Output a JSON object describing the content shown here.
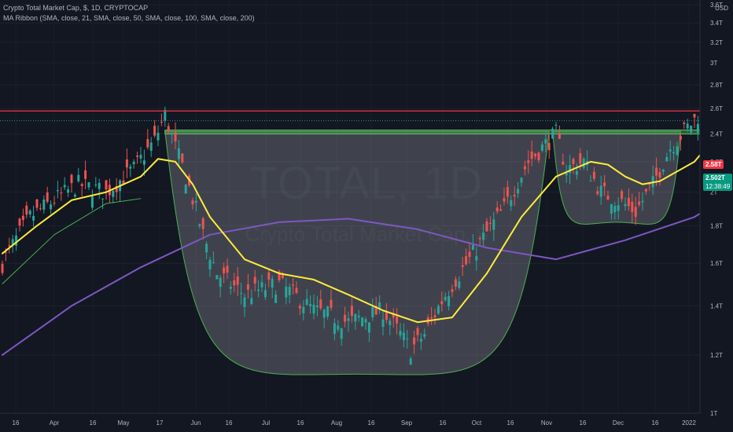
{
  "header": {
    "symbol_line": "Crypto Total Market Cap, $, 1D, CRYPTOCAP",
    "indicator_line": "MA Ribbon (SMA, close, 21, SMA, close, 50, SMA, close, 100, SMA, close, 200)",
    "currency": "USD"
  },
  "watermark": {
    "ticker": "TOTAL, 1D",
    "name": "Crypto Total Market Cap, $"
  },
  "price_tags": {
    "resistance": "2.58T",
    "last_price": "2.502T",
    "countdown": "12:38:49"
  },
  "colors": {
    "background": "#131722",
    "up_candle": "#26a69a",
    "down_candle": "#ef5350",
    "ma_yellow": "#ffeb3b",
    "ma_purple": "#7e57c2",
    "ma_green": "#4caf50",
    "resistance_line": "#f23645",
    "neckline_zone": "#4caf50"
  },
  "chart_data": {
    "type": "candlestick",
    "x_ticks": [
      "16",
      "Apr",
      "16",
      "May",
      "17",
      "Jun",
      "16",
      "Jul",
      "16",
      "Aug",
      "16",
      "Sep",
      "16",
      "Oct",
      "16",
      "Nov",
      "16",
      "Dec",
      "16",
      "2022"
    ],
    "y_ticks": [
      "1T",
      "1.2T",
      "1.4T",
      "1.6T",
      "1.8T",
      "2T",
      "2.2T",
      "2.4T",
      "2.6T",
      "2.8T",
      "3T",
      "3.2T",
      "3.4T",
      "3.6T"
    ],
    "ylim": [
      1.0,
      3.6
    ],
    "y_scale": "log",
    "ma_yellow": {
      "x_day": [
        0,
        10,
        20,
        30,
        40,
        45,
        50,
        55,
        60,
        70,
        80,
        90,
        100,
        110,
        120,
        130,
        140,
        150,
        160,
        165,
        170,
        175,
        180,
        185,
        190,
        200,
        205
      ],
      "y": [
        1.65,
        1.8,
        1.95,
        2.0,
        2.1,
        2.22,
        2.2,
        2.05,
        1.85,
        1.62,
        1.55,
        1.52,
        1.45,
        1.38,
        1.33,
        1.35,
        1.55,
        1.85,
        2.1,
        2.15,
        2.2,
        2.18,
        2.1,
        2.05,
        2.07,
        2.2,
        2.35
      ]
    },
    "ma_purple": {
      "x_day": [
        0,
        20,
        40,
        60,
        80,
        100,
        120,
        140,
        160,
        180,
        200,
        210
      ],
      "y": [
        1.2,
        1.4,
        1.58,
        1.75,
        1.82,
        1.84,
        1.78,
        1.68,
        1.62,
        1.72,
        1.85,
        1.98
      ]
    },
    "ma_green_segments": [
      {
        "x_day": [
          0,
          15,
          30,
          40
        ],
        "y": [
          1.5,
          1.75,
          1.93,
          1.96
        ]
      }
    ],
    "resistance_level": 2.58,
    "last_price": 2.502,
    "neckline_zone": {
      "y_low": 2.4,
      "y_high": 2.43,
      "x_day_start": 47,
      "x_day_end": 214
    },
    "patterns": [
      {
        "name": "cup",
        "x_day_start": 47,
        "x_day_end": 158,
        "rim": 2.42,
        "bottom": 1.13
      },
      {
        "name": "handle",
        "x_day_start": 159,
        "x_day_end": 196,
        "rim": 2.42,
        "bottom": 1.82
      }
    ]
  }
}
